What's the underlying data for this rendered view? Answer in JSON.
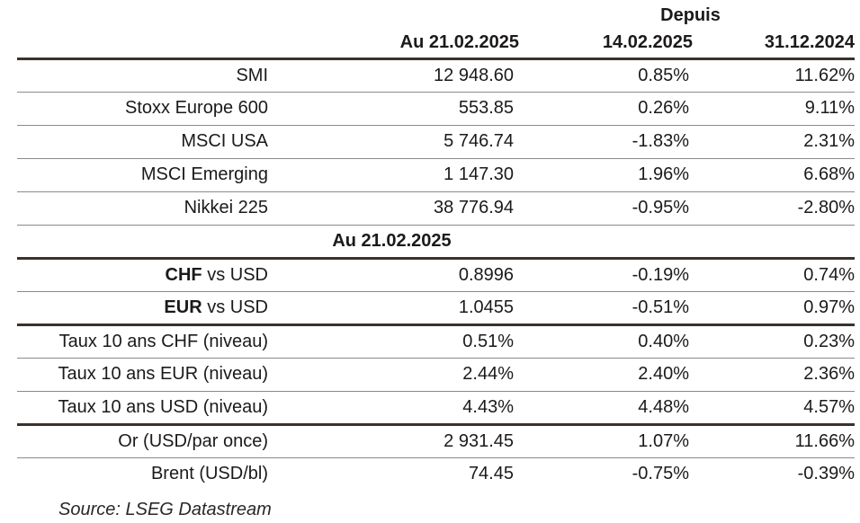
{
  "colors": {
    "thick_rule": "#3a322c",
    "thin_rule": "#8a8a8a",
    "text": "#1c1a19",
    "background": "#ffffff"
  },
  "table": {
    "depuis_label": "Depuis",
    "columns": {
      "value_header": "Au 21.02.2025",
      "since_mid_header": "14.02.2025",
      "since_ytd_header": "31.12.2024"
    },
    "mid_header": "Au 21.02.2025",
    "rows": [
      {
        "label": "SMI",
        "value": "12 948.60",
        "since_mid": "0.85%",
        "since_ytd": "11.62%"
      },
      {
        "label": "Stoxx Europe 600",
        "value": "553.85",
        "since_mid": "0.26%",
        "since_ytd": "9.11%"
      },
      {
        "label": "MSCI USA",
        "value": "5 746.74",
        "since_mid": "-1.83%",
        "since_ytd": "2.31%"
      },
      {
        "label": "MSCI Emerging",
        "value": "1 147.30",
        "since_mid": "1.96%",
        "since_ytd": "6.68%"
      },
      {
        "label": "Nikkei 225",
        "value": "38 776.94",
        "since_mid": "-0.95%",
        "since_ytd": "-2.80%"
      },
      {
        "label_bold": "CHF",
        "label": " vs USD",
        "value": "0.8996",
        "since_mid": "-0.19%",
        "since_ytd": "0.74%"
      },
      {
        "label_bold": "EUR",
        "label": " vs USD",
        "value": "1.0455",
        "since_mid": "-0.51%",
        "since_ytd": "0.97%"
      },
      {
        "label": "Taux 10 ans CHF (niveau)",
        "value": "0.51%",
        "since_mid": "0.40%",
        "since_ytd": "0.23%"
      },
      {
        "label": "Taux 10 ans EUR (niveau)",
        "value": "2.44%",
        "since_mid": "2.40%",
        "since_ytd": "2.36%"
      },
      {
        "label": "Taux 10 ans USD (niveau)",
        "value": "4.43%",
        "since_mid": "4.48%",
        "since_ytd": "4.57%"
      },
      {
        "label": "Or (USD/par once)",
        "value": "2 931.45",
        "since_mid": "1.07%",
        "since_ytd": "11.66%"
      },
      {
        "label": "Brent (USD/bl)",
        "value": "74.45",
        "since_mid": "-0.75%",
        "since_ytd": "-0.39%"
      }
    ]
  },
  "footer": {
    "source": "Source: LSEG Datastream"
  }
}
